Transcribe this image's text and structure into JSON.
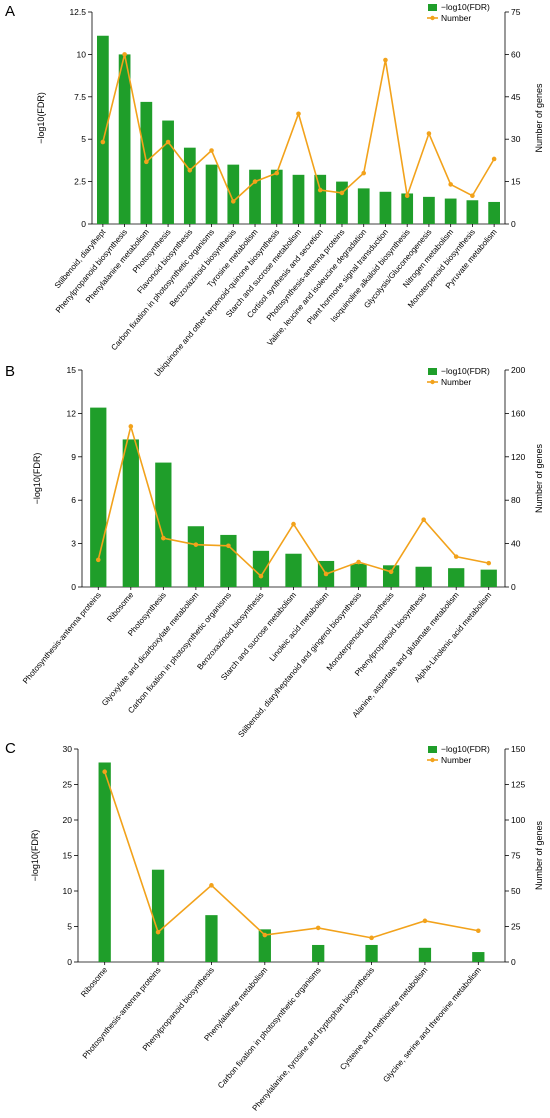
{
  "colors": {
    "bar": "#1f9e2a",
    "line": "#f2a21b",
    "axis": "#000000"
  },
  "chart_data": [
    {
      "type": "bar",
      "panel_label": "A",
      "categories": [
        "Stilbenoid, diarylhept",
        "Phenylpropanoid biosynthesis",
        "Phenylalanine metabolism",
        "Photosynthesis",
        "Flavonoid biosynthesis",
        "Carbon fixation in photosynthetic organisms",
        "Benzoxazinoid biosynthesis",
        "Tyrosine metabolism",
        "Ubiquinone and other terpenoid-quinone biosynthesis",
        "Starch and sucrose metabolism",
        "Cortisol synthesis and secretion",
        "Photosynthesis-antenna proteins",
        "Valine, leucine and isoleucine degradation",
        "Plant hormone signal transduction",
        "Isoquinoline alkaloid biosynthesis",
        "Glycolysis/Gluconeogenesis",
        "Nitrogen metabolism",
        "Monoterpenoid biosynthesis",
        "Pyruvate metabolism"
      ],
      "series": [
        {
          "name": "−log10(FDR)",
          "axis": "left",
          "kind": "bar",
          "values": [
            11.1,
            10.0,
            7.2,
            6.1,
            4.5,
            3.5,
            3.5,
            3.2,
            3.2,
            2.9,
            2.9,
            2.5,
            2.1,
            1.9,
            1.8,
            1.6,
            1.5,
            1.4,
            1.3
          ]
        },
        {
          "name": "Number",
          "axis": "right",
          "kind": "line",
          "values": [
            29,
            60,
            22,
            29,
            19,
            26,
            8,
            15,
            18,
            39,
            12,
            11,
            18,
            58,
            10,
            32,
            14,
            10,
            23
          ]
        }
      ],
      "ylabel": "−log10(FDR)",
      "y2label": "Number of genes",
      "ylim": [
        0,
        12.5
      ],
      "yticks": [
        "0",
        "2.5",
        "5",
        "7.5",
        "10",
        "12.5"
      ],
      "y2lim": [
        0,
        75
      ],
      "y2ticks": [
        "0",
        "15",
        "30",
        "45",
        "60",
        "75"
      ],
      "legend": "top-right"
    },
    {
      "type": "bar",
      "panel_label": "B",
      "categories": [
        "Photosynthesis-antenna proteins",
        "Ribosome",
        "Photosynthesis",
        "Glyoxylate and dicarboxylate metabolism",
        "Carbon fixation in photosynthetic organisms",
        "Benzoxazinoid biosynthesis",
        "Starch and sucrose metabolism",
        "Linoleic acid metabolism",
        "Stilbenoid, diarylheptanoid and gingerol biosynthesis",
        "Monoterpenoid biosynthesis",
        "Phenylpropanoid biosynthesis",
        "Alanine, aspartate and glutamate metabolism",
        "Alpha-Linolenic acid metabolism"
      ],
      "series": [
        {
          "name": "−log10(FDR)",
          "axis": "left",
          "kind": "bar",
          "values": [
            12.4,
            10.2,
            8.6,
            4.2,
            3.6,
            2.5,
            2.3,
            1.8,
            1.6,
            1.5,
            1.4,
            1.3,
            1.2
          ]
        },
        {
          "name": "Number",
          "axis": "right",
          "kind": "line",
          "values": [
            25,
            148,
            45,
            39,
            38,
            10,
            58,
            12,
            23,
            14,
            62,
            28,
            22
          ]
        }
      ],
      "ylabel": "−log10(FDR)",
      "y2label": "Number of genes",
      "ylim": [
        0,
        15
      ],
      "yticks": [
        "0",
        "3",
        "6",
        "9",
        "12",
        "15"
      ],
      "y2lim": [
        0,
        200
      ],
      "y2ticks": [
        "0",
        "40",
        "80",
        "120",
        "160",
        "200"
      ],
      "legend": "top-right"
    },
    {
      "type": "bar",
      "panel_label": "C",
      "categories": [
        "Ribosome",
        "Photosynthesis-antenna proteins",
        "Phenylpropanoid biosynthesis",
        "Phenylalanine metabolism",
        "Carbon fixation in photosynthetic organisms",
        "Phenylalanine, tyrosine and tryptophan biosynthesis",
        "Cysteine and methionine metabolism",
        "Glycine, serine and threonine metabolism"
      ],
      "series": [
        {
          "name": "−log10(FDR)",
          "axis": "left",
          "kind": "bar",
          "values": [
            28.1,
            13.0,
            6.6,
            4.6,
            2.4,
            2.4,
            2.0,
            1.4
          ]
        },
        {
          "name": "Number",
          "axis": "right",
          "kind": "line",
          "values": [
            134,
            21,
            54,
            19,
            24,
            17,
            29,
            22
          ]
        }
      ],
      "ylabel": "−log10(FDR)",
      "y2label": "Number of genes",
      "ylim": [
        0,
        30
      ],
      "yticks": [
        "0",
        "5",
        "10",
        "15",
        "20",
        "25",
        "30"
      ],
      "y2lim": [
        0,
        150
      ],
      "y2ticks": [
        "0",
        "25",
        "50",
        "75",
        "100",
        "125",
        "150"
      ],
      "legend": "top-right"
    }
  ]
}
